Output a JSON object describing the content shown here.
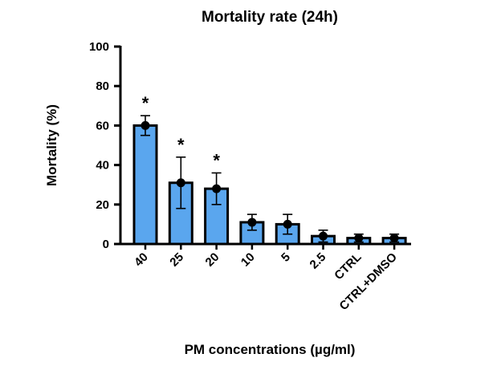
{
  "chart_data": {
    "type": "bar",
    "title": "Mortality rate (24h)",
    "xlabel": "PM concentrations (µg/ml)",
    "ylabel": "Mortality (%)",
    "ylim": [
      0,
      100
    ],
    "yticks": [
      0,
      20,
      40,
      60,
      80,
      100
    ],
    "categories": [
      "40",
      "25",
      "20",
      "10",
      "5",
      "2.5",
      "CTRL",
      "CTRL+DMSO"
    ],
    "values": [
      60,
      31,
      28,
      11,
      10,
      4,
      3,
      3
    ],
    "error": [
      5,
      13,
      8,
      4,
      5,
      3,
      2,
      2
    ],
    "points": [
      60,
      31,
      28,
      11,
      10,
      4,
      3,
      3
    ],
    "significance": [
      "*",
      "*",
      "*",
      "",
      "",
      "",
      "",
      ""
    ],
    "bar_color": "#5aa6ee",
    "edge_color": "#000000",
    "grid": false,
    "legend": "none"
  }
}
